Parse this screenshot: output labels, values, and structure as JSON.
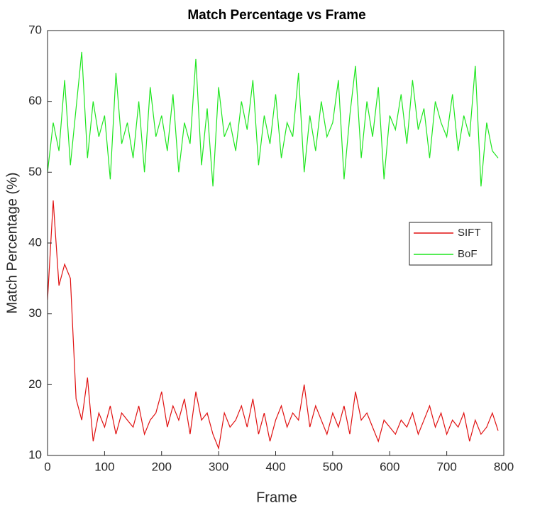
{
  "chart_data": {
    "type": "line",
    "title": "Match Percentage vs Frame",
    "xlabel": "Frame",
    "ylabel": "Match Percentage (%)",
    "x": [
      0,
      10,
      20,
      30,
      40,
      50,
      60,
      70,
      80,
      90,
      100,
      110,
      120,
      130,
      140,
      150,
      160,
      170,
      180,
      190,
      200,
      210,
      220,
      230,
      240,
      250,
      260,
      270,
      280,
      290,
      300,
      310,
      320,
      330,
      340,
      350,
      360,
      370,
      380,
      390,
      400,
      410,
      420,
      430,
      440,
      450,
      460,
      470,
      480,
      490,
      500,
      510,
      520,
      530,
      540,
      550,
      560,
      570,
      580,
      590,
      600,
      610,
      620,
      630,
      640,
      650,
      660,
      670,
      680,
      690,
      700,
      710,
      720,
      730,
      740,
      750,
      760,
      770,
      780,
      790
    ],
    "series": [
      {
        "name": "SIFT",
        "color": "#e01010",
        "values": [
          32,
          46,
          34,
          37,
          35,
          18,
          15,
          21,
          12,
          16,
          14,
          17,
          13,
          16,
          15,
          14,
          17,
          13,
          15,
          16,
          19,
          14,
          17,
          15,
          18,
          13,
          19,
          15,
          16,
          13,
          11,
          16,
          14,
          15,
          17,
          14,
          18,
          13,
          16,
          12,
          15,
          17,
          14,
          16,
          15,
          20,
          14,
          17,
          15,
          13,
          16,
          14,
          17,
          13,
          19,
          15,
          16,
          14,
          12,
          15,
          14,
          13,
          15,
          14,
          16,
          13,
          15,
          17,
          14,
          16,
          13,
          15,
          14,
          16,
          12,
          15,
          13,
          14,
          16,
          13.5
        ]
      },
      {
        "name": "BoF",
        "color": "#1ee61e",
        "values": [
          50,
          57,
          53,
          63,
          51,
          59,
          67,
          52,
          60,
          55,
          58,
          49,
          64,
          54,
          57,
          52,
          60,
          50,
          62,
          55,
          58,
          53,
          61,
          50,
          57,
          54,
          66,
          51,
          59,
          48,
          62,
          55,
          57,
          53,
          60,
          56,
          63,
          51,
          58,
          54,
          61,
          52,
          57,
          55,
          64,
          50,
          58,
          53,
          60,
          55,
          57,
          63,
          49,
          58,
          65,
          52,
          60,
          55,
          62,
          49,
          58,
          56,
          61,
          54,
          63,
          56,
          59,
          52,
          60,
          57,
          55,
          61,
          53,
          58,
          55,
          65,
          48,
          57,
          53,
          52
        ]
      }
    ],
    "xlim": [
      0,
      800
    ],
    "xticks": [
      0,
      100,
      200,
      300,
      400,
      500,
      600,
      700,
      800
    ],
    "ylim": [
      10,
      70
    ],
    "yticks": [
      10,
      20,
      30,
      40,
      50,
      60,
      70
    ],
    "legend": "right",
    "grid": false
  }
}
